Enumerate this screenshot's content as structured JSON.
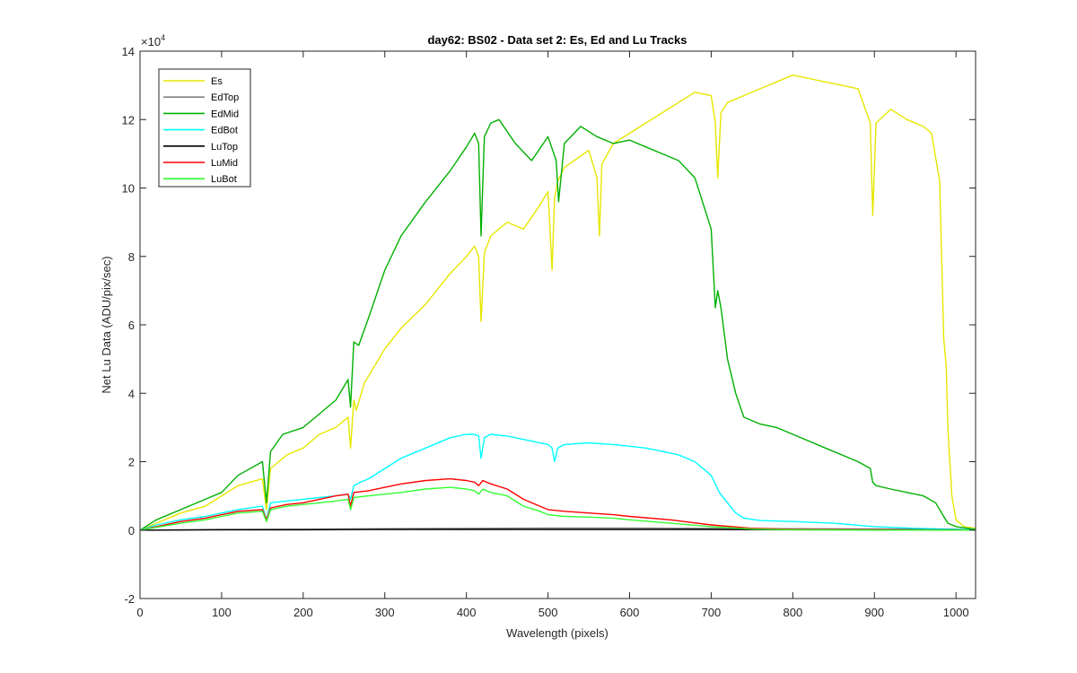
{
  "chart_data": {
    "type": "line",
    "title": "day62: BS02 - Data set 2: Es, Ed and Lu Tracks",
    "xlabel": "Wavelength (pixels)",
    "ylabel": "Net Lu Data (ADU/pix/sec)",
    "exponent_label": "×10",
    "exponent_power": "4",
    "y_scale_factor": 10000,
    "xlim": [
      0,
      1024
    ],
    "ylim": [
      -2,
      14
    ],
    "xticks": [
      0,
      100,
      200,
      300,
      400,
      500,
      600,
      700,
      800,
      900,
      1000
    ],
    "yticks": [
      -2,
      0,
      2,
      4,
      6,
      8,
      10,
      12,
      14
    ],
    "grid": false,
    "legend_position": "top-left",
    "series": [
      {
        "name": "Es",
        "color": "#e6e600",
        "x": [
          0,
          20,
          50,
          80,
          100,
          120,
          150,
          155,
          160,
          180,
          200,
          220,
          240,
          255,
          258,
          262,
          265,
          275,
          300,
          320,
          350,
          380,
          400,
          410,
          415,
          418,
          422,
          430,
          450,
          470,
          490,
          500,
          505,
          508,
          512,
          520,
          550,
          560,
          563,
          566,
          580,
          600,
          620,
          640,
          660,
          680,
          700,
          705,
          708,
          712,
          720,
          740,
          760,
          780,
          800,
          820,
          840,
          860,
          880,
          895,
          898,
          902,
          920,
          940,
          960,
          970,
          980,
          985,
          988,
          990,
          995,
          1000,
          1010,
          1024
        ],
        "y": [
          0,
          0.2,
          0.5,
          0.7,
          1.0,
          1.3,
          1.5,
          0.6,
          1.8,
          2.2,
          2.4,
          2.8,
          3.0,
          3.3,
          2.4,
          3.8,
          3.5,
          4.3,
          5.3,
          5.9,
          6.6,
          7.5,
          8.0,
          8.3,
          8.0,
          6.1,
          8.1,
          8.6,
          9.0,
          8.8,
          9.5,
          9.9,
          7.6,
          9.7,
          10.2,
          10.6,
          11.1,
          10.3,
          8.6,
          10.7,
          11.3,
          11.6,
          11.9,
          12.2,
          12.5,
          12.8,
          12.7,
          11.9,
          10.3,
          12.2,
          12.5,
          12.7,
          12.9,
          13.1,
          13.3,
          13.2,
          13.1,
          13.0,
          12.9,
          11.9,
          9.2,
          11.9,
          12.3,
          12.0,
          11.8,
          11.6,
          10.2,
          5.6,
          4.8,
          3.0,
          1.0,
          0.3,
          0.1,
          0.05
        ]
      },
      {
        "name": "EdTop",
        "color": "#808080",
        "x": [
          0,
          100,
          200,
          300,
          400,
          500,
          600,
          700,
          800,
          900,
          1000,
          1024
        ],
        "y": [
          0,
          0.02,
          0.03,
          0.04,
          0.05,
          0.06,
          0.06,
          0.05,
          0.04,
          0.03,
          0.02,
          0.01
        ]
      },
      {
        "name": "EdMid",
        "color": "#00b000",
        "x": [
          0,
          20,
          50,
          80,
          100,
          120,
          150,
          155,
          160,
          175,
          200,
          220,
          240,
          255,
          258,
          262,
          268,
          280,
          300,
          320,
          350,
          380,
          400,
          410,
          415,
          418,
          422,
          430,
          440,
          460,
          480,
          500,
          510,
          513,
          520,
          540,
          560,
          580,
          600,
          620,
          640,
          660,
          680,
          700,
          705,
          708,
          712,
          720,
          730,
          740,
          760,
          780,
          800,
          820,
          840,
          860,
          880,
          895,
          898,
          902,
          920,
          940,
          960,
          975,
          985,
          990,
          1000,
          1024
        ],
        "y": [
          0,
          0.3,
          0.6,
          0.9,
          1.1,
          1.6,
          2.0,
          0.8,
          2.3,
          2.8,
          3.0,
          3.4,
          3.8,
          4.4,
          3.6,
          5.5,
          5.4,
          6.2,
          7.6,
          8.6,
          9.6,
          10.5,
          11.2,
          11.6,
          11.3,
          8.6,
          11.5,
          11.9,
          12.0,
          11.3,
          10.8,
          11.5,
          10.8,
          9.6,
          11.3,
          11.8,
          11.5,
          11.3,
          11.4,
          11.2,
          11.0,
          10.8,
          10.3,
          8.8,
          6.5,
          7.0,
          6.5,
          5.0,
          4.0,
          3.3,
          3.1,
          3.0,
          2.8,
          2.6,
          2.4,
          2.2,
          2.0,
          1.8,
          1.4,
          1.3,
          1.2,
          1.1,
          1.0,
          0.8,
          0.4,
          0.2,
          0.1,
          0.02
        ]
      },
      {
        "name": "EdBot",
        "color": "#00ffff",
        "x": [
          0,
          20,
          50,
          80,
          100,
          120,
          150,
          155,
          160,
          180,
          200,
          220,
          240,
          255,
          258,
          262,
          270,
          280,
          300,
          320,
          350,
          380,
          400,
          410,
          415,
          418,
          422,
          430,
          450,
          480,
          500,
          505,
          508,
          512,
          520,
          550,
          580,
          600,
          620,
          640,
          660,
          680,
          700,
          710,
          720,
          730,
          740,
          760,
          800,
          850,
          900,
          950,
          1000,
          1024
        ],
        "y": [
          0,
          0.15,
          0.3,
          0.4,
          0.5,
          0.6,
          0.7,
          0.3,
          0.8,
          0.85,
          0.9,
          0.95,
          1.0,
          1.05,
          0.9,
          1.3,
          1.4,
          1.5,
          1.8,
          2.1,
          2.4,
          2.7,
          2.8,
          2.8,
          2.75,
          2.1,
          2.7,
          2.8,
          2.75,
          2.6,
          2.5,
          2.4,
          2.0,
          2.4,
          2.5,
          2.55,
          2.5,
          2.45,
          2.4,
          2.3,
          2.2,
          2.0,
          1.6,
          1.1,
          0.8,
          0.5,
          0.35,
          0.28,
          0.25,
          0.2,
          0.1,
          0.05,
          0.02,
          0.01
        ]
      },
      {
        "name": "LuTop",
        "color": "#000000",
        "x": [
          0,
          100,
          200,
          300,
          400,
          500,
          600,
          700,
          800,
          900,
          1000,
          1024
        ],
        "y": [
          0,
          0.01,
          0.01,
          0.02,
          0.02,
          0.02,
          0.02,
          0.02,
          0.01,
          0.01,
          0.01,
          0.0
        ]
      },
      {
        "name": "LuMid",
        "color": "#ff0000",
        "x": [
          0,
          20,
          50,
          80,
          100,
          120,
          150,
          155,
          160,
          180,
          200,
          220,
          240,
          255,
          258,
          262,
          280,
          300,
          320,
          350,
          380,
          400,
          410,
          415,
          420,
          430,
          450,
          470,
          490,
          500,
          520,
          550,
          580,
          600,
          650,
          700,
          750,
          800,
          900,
          1000,
          1024
        ],
        "y": [
          0,
          0.1,
          0.25,
          0.35,
          0.45,
          0.55,
          0.6,
          0.3,
          0.65,
          0.75,
          0.8,
          0.9,
          1.0,
          1.05,
          0.7,
          1.1,
          1.15,
          1.25,
          1.35,
          1.45,
          1.5,
          1.45,
          1.4,
          1.3,
          1.45,
          1.35,
          1.2,
          0.9,
          0.7,
          0.6,
          0.55,
          0.5,
          0.45,
          0.4,
          0.3,
          0.15,
          0.05,
          0.02,
          0.01,
          0.0,
          0.0
        ]
      },
      {
        "name": "LuBot",
        "color": "#33ff33",
        "x": [
          0,
          20,
          50,
          80,
          100,
          120,
          150,
          155,
          160,
          180,
          200,
          220,
          240,
          255,
          258,
          262,
          280,
          300,
          320,
          350,
          380,
          400,
          410,
          415,
          420,
          430,
          450,
          470,
          490,
          500,
          520,
          550,
          580,
          600,
          650,
          700,
          750,
          800,
          900,
          1000,
          1024
        ],
        "y": [
          0,
          0.08,
          0.2,
          0.3,
          0.4,
          0.5,
          0.55,
          0.25,
          0.6,
          0.7,
          0.75,
          0.8,
          0.85,
          0.9,
          0.6,
          0.95,
          1.0,
          1.05,
          1.1,
          1.2,
          1.25,
          1.2,
          1.15,
          1.05,
          1.2,
          1.1,
          1.0,
          0.7,
          0.55,
          0.45,
          0.4,
          0.38,
          0.35,
          0.3,
          0.2,
          0.1,
          0.03,
          0.01,
          0.0,
          0.0,
          0.0
        ]
      }
    ]
  }
}
